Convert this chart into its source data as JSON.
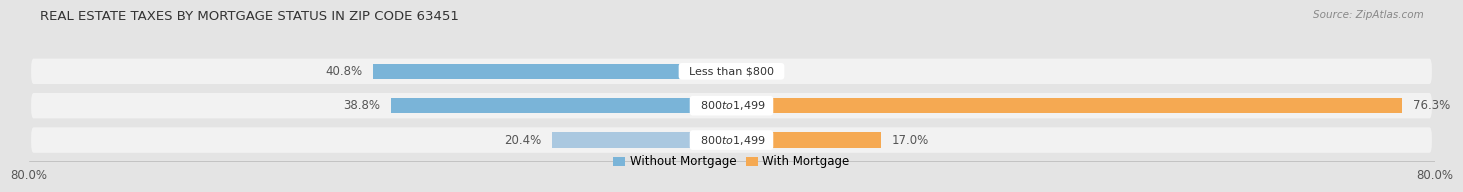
{
  "title": "REAL ESTATE TAXES BY MORTGAGE STATUS IN ZIP CODE 63451",
  "source": "Source: ZipAtlas.com",
  "rows": [
    {
      "label": "Less than $800",
      "without_mortgage": 40.8,
      "with_mortgage": 0.0
    },
    {
      "label": "$800 to $1,499",
      "without_mortgage": 38.8,
      "with_mortgage": 76.3
    },
    {
      "label": "$800 to $1,499",
      "without_mortgage": 20.4,
      "with_mortgage": 17.0
    }
  ],
  "x_min": -80.0,
  "x_max": 80.0,
  "color_without": "#7ab4d8",
  "color_with": "#f5a952",
  "color_without_row2": "#aac8e0",
  "bg_color": "#e4e4e4",
  "row_bg_color": "#f2f2f2",
  "title_fontsize": 9.5,
  "label_fontsize": 8.5,
  "legend_fontsize": 8.5,
  "source_fontsize": 7.5,
  "pct_fontsize": 8.5
}
